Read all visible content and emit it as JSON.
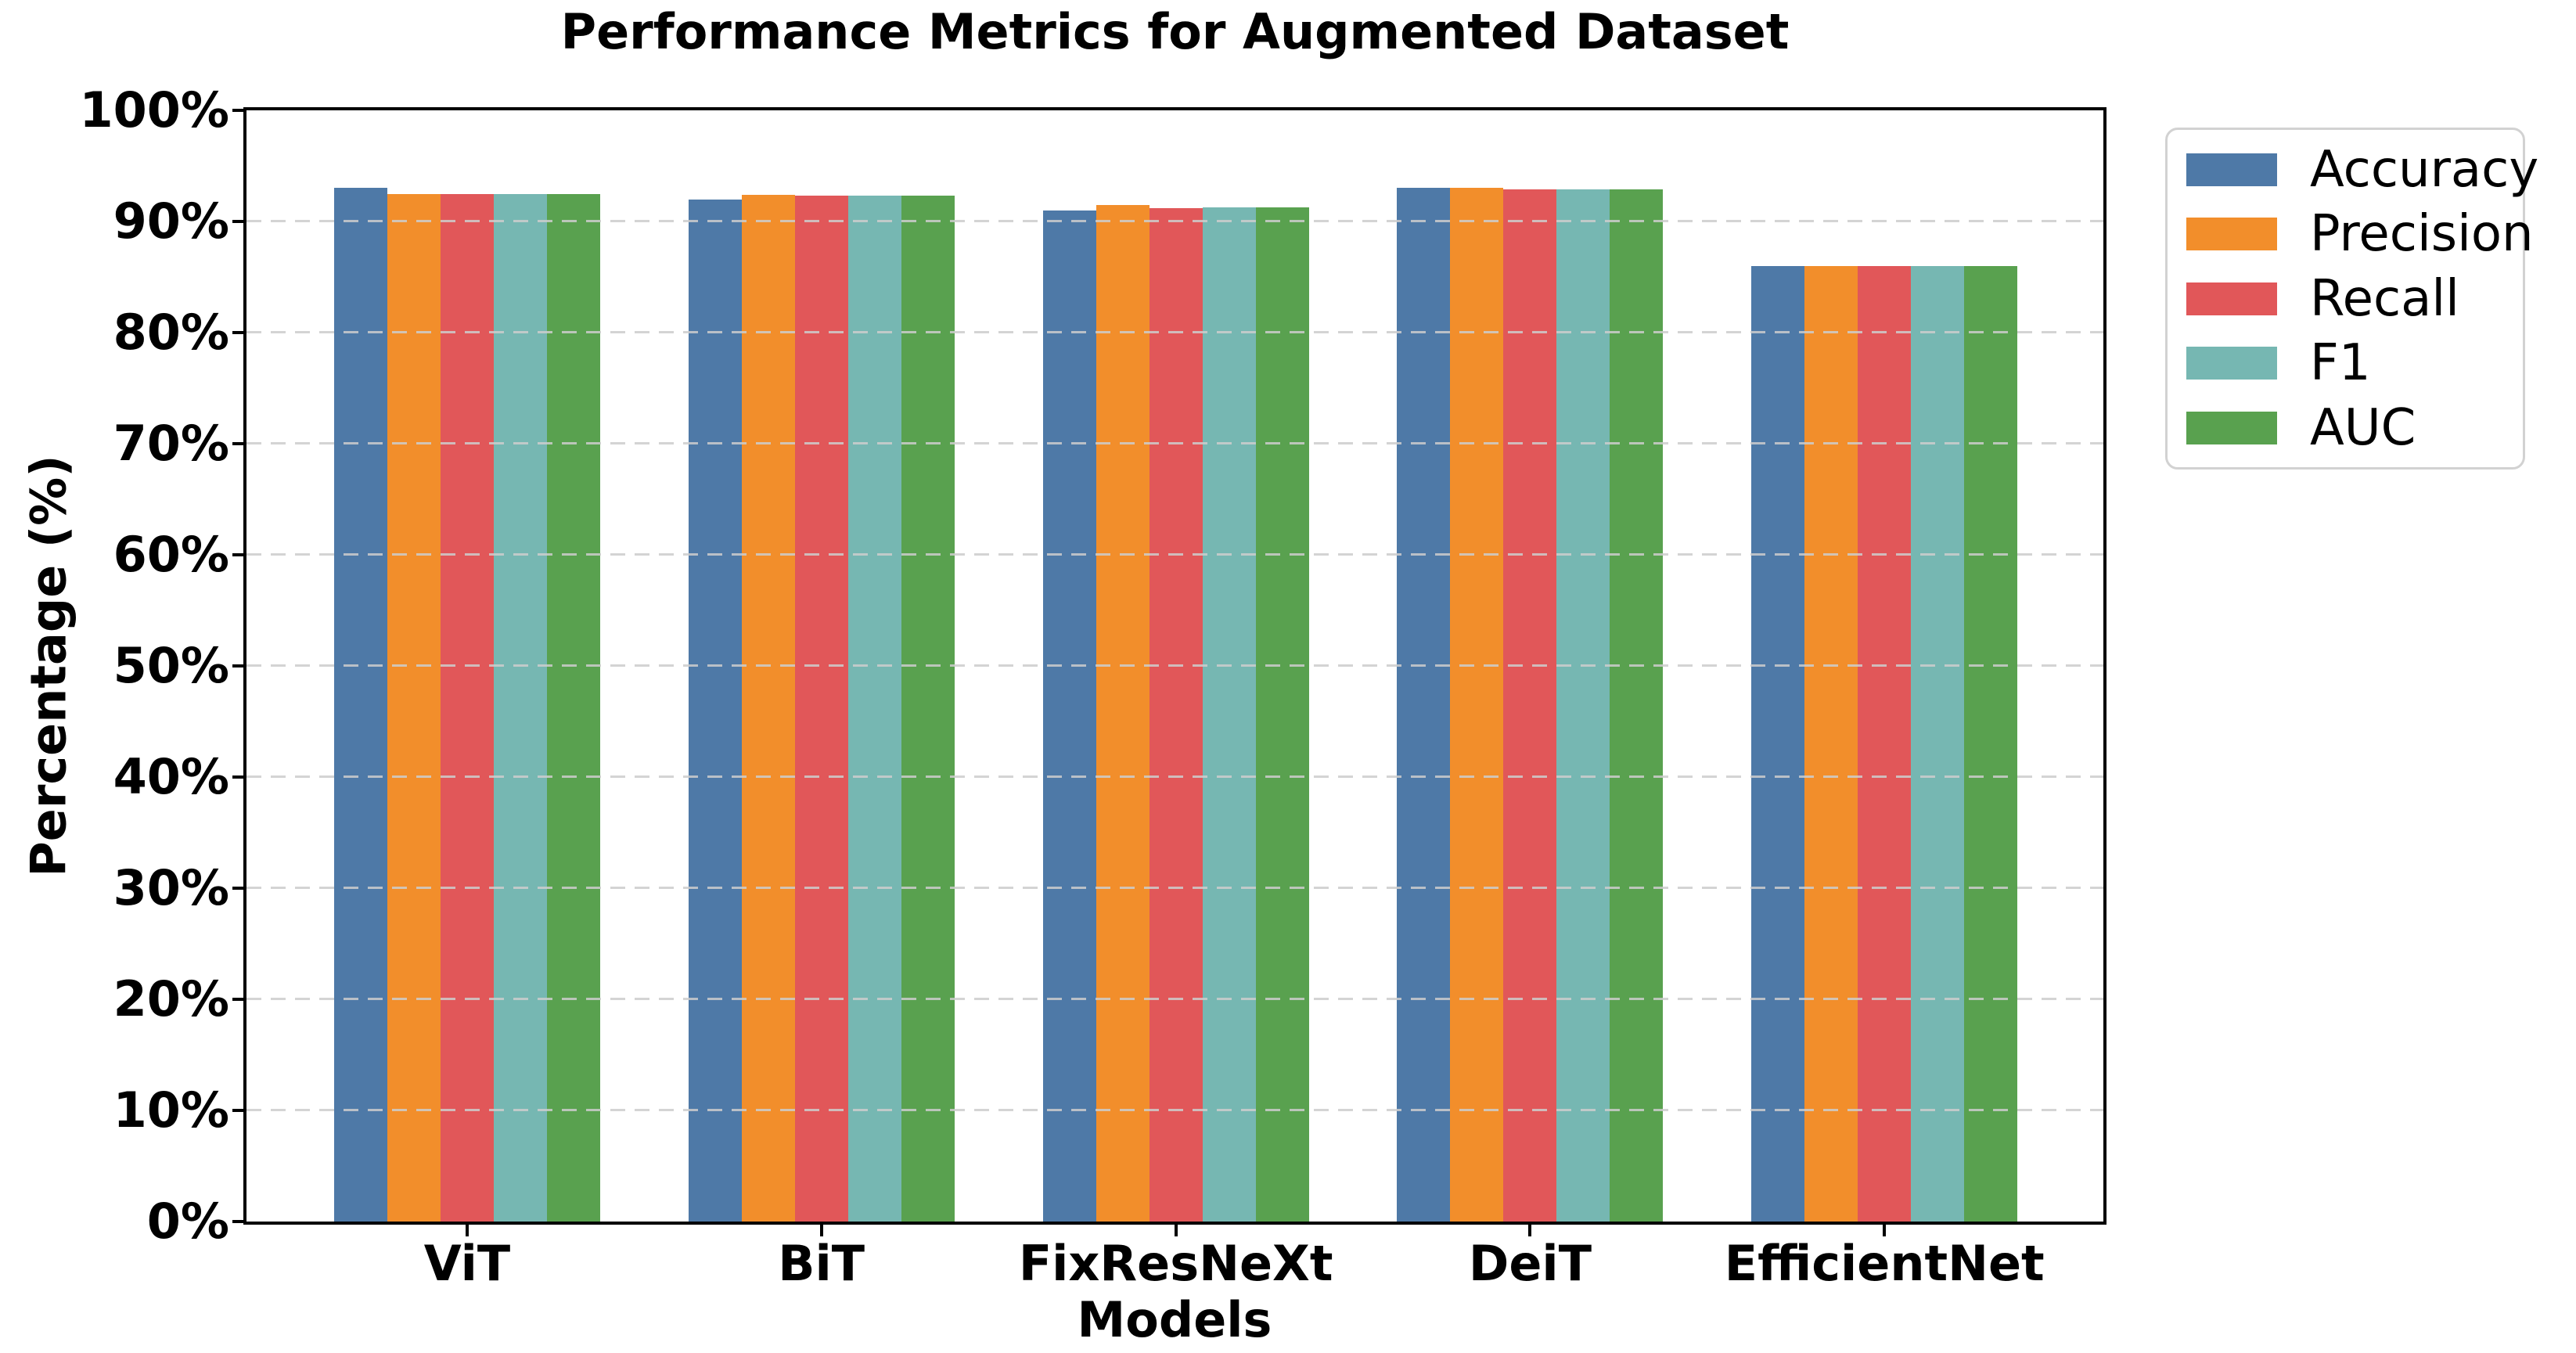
{
  "chart_data": {
    "type": "bar",
    "title": "Performance Metrics for Augmented Dataset",
    "xlabel": "Models",
    "ylabel": "Percentage (%)",
    "categories": [
      "ViT",
      "BiT",
      "FixResNeXt",
      "DeiT",
      "EfficientNet"
    ],
    "series": [
      {
        "name": "Accuracy",
        "color": "#4E79A7",
        "values": [
          93.0,
          92.0,
          91.0,
          93.0,
          86.0
        ]
      },
      {
        "name": "Precision",
        "color": "#F28E2B",
        "values": [
          92.5,
          92.4,
          91.5,
          93.0,
          86.0
        ]
      },
      {
        "name": "Recall",
        "color": "#E15759",
        "values": [
          92.5,
          92.3,
          91.2,
          92.9,
          86.0
        ]
      },
      {
        "name": "F1",
        "color": "#76B7B2",
        "values": [
          92.5,
          92.3,
          91.3,
          92.9,
          86.0
        ]
      },
      {
        "name": "AUC",
        "color": "#59A14F",
        "values": [
          92.5,
          92.3,
          91.3,
          92.9,
          86.0
        ]
      }
    ],
    "ylim": [
      0,
      100
    ],
    "ytick_step": 10,
    "ytick_labels": [
      "0%",
      "10%",
      "20%",
      "30%",
      "40%",
      "50%",
      "60%",
      "70%",
      "80%",
      "90%",
      "100%"
    ],
    "grid": "horizontal-dashed",
    "grid_color": "#cdcdcd",
    "legend_position": "outside-right",
    "legend_entries": [
      "Accuracy",
      "Precision",
      "Recall",
      "F1",
      "AUC"
    ],
    "axis_color": "#000000",
    "background_color": "#ffffff"
  }
}
